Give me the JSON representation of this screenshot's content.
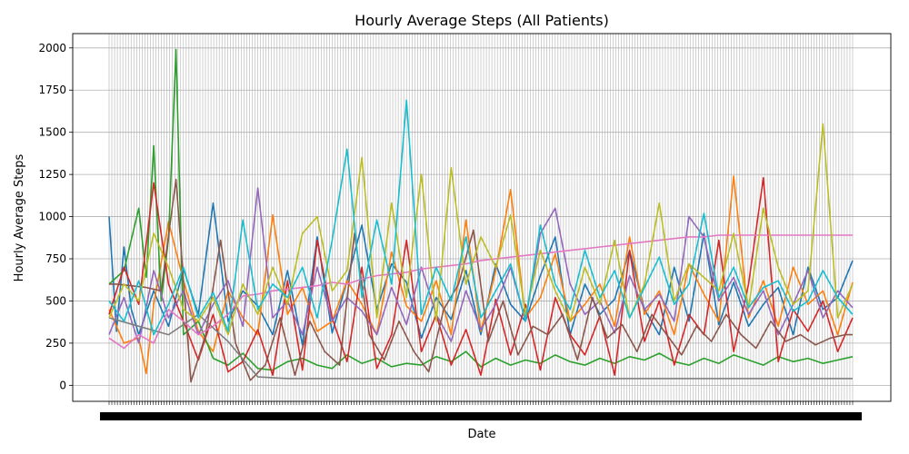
{
  "chart_data": {
    "type": "line",
    "title": "Hourly Average Steps (All Patients)",
    "xlabel": "Date",
    "ylabel": "Hourly Average Steps",
    "ylim": [
      -95,
      2085
    ],
    "xlim": [
      0,
      100
    ],
    "x_axis_note": "dense overlapping date tick labels (unreadable)",
    "y_ticks": [
      0,
      250,
      500,
      750,
      1000,
      1250,
      1500,
      1750,
      2000
    ],
    "grid": true,
    "legend": false,
    "colors": [
      "#1f77b4",
      "#ff7f0e",
      "#2ca02c",
      "#d62728",
      "#9467bd",
      "#8c564b",
      "#e377c2",
      "#7f7f7f",
      "#bcbd22",
      "#17becf"
    ],
    "series": [
      {
        "x": [
          0,
          1,
          2,
          3,
          4,
          6,
          8,
          10,
          12,
          14,
          16,
          18,
          20,
          22,
          24,
          26,
          28,
          30,
          32,
          34,
          36,
          38,
          40,
          42,
          44,
          46,
          48,
          50,
          52,
          54,
          56,
          58,
          60,
          62,
          64,
          66,
          68,
          70,
          72,
          74,
          76,
          78,
          80,
          82,
          84,
          86,
          88,
          90,
          92,
          94,
          96,
          98,
          100
        ],
        "values": [
          1000,
          320,
          820,
          450,
          300,
          560,
          350,
          690,
          420,
          1080,
          380,
          560,
          470,
          300,
          680,
          240,
          880,
          310,
          620,
          950,
          450,
          720,
          610,
          280,
          520,
          390,
          680,
          300,
          720,
          480,
          380,
          650,
          880,
          300,
          600,
          420,
          510,
          800,
          450,
          300,
          700,
          380,
          900,
          360,
          610,
          350,
          480,
          580,
          300,
          700,
          450,
          520,
          740
        ]
      },
      {
        "x": [
          0,
          2,
          4,
          5,
          6,
          8,
          10,
          12,
          14,
          16,
          18,
          20,
          22,
          24,
          26,
          28,
          30,
          32,
          34,
          36,
          38,
          40,
          42,
          44,
          46,
          48,
          50,
          52,
          54,
          56,
          58,
          60,
          62,
          64,
          66,
          68,
          70,
          72,
          74,
          76,
          78,
          80,
          82,
          84,
          86,
          88,
          90,
          92,
          94,
          96,
          98,
          100
        ],
        "values": [
          450,
          250,
          280,
          70,
          480,
          970,
          620,
          320,
          200,
          560,
          400,
          300,
          1010,
          420,
          580,
          320,
          380,
          620,
          480,
          300,
          790,
          470,
          380,
          620,
          300,
          980,
          320,
          680,
          1160,
          400,
          520,
          780,
          380,
          480,
          600,
          350,
          880,
          420,
          560,
          300,
          720,
          540,
          380,
          1240,
          400,
          620,
          350,
          700,
          480,
          560,
          300,
          610
        ]
      },
      {
        "x": [
          0,
          2,
          4,
          5,
          6,
          7,
          8,
          9,
          10,
          12,
          14,
          16,
          18,
          20,
          22,
          24,
          26,
          28,
          30,
          32,
          34,
          36,
          38,
          40,
          42,
          44,
          46,
          48,
          50,
          52,
          54,
          56,
          58,
          60,
          62,
          64,
          66,
          68,
          70,
          72,
          74,
          76,
          78,
          80,
          82,
          84,
          86,
          88,
          90,
          92,
          94,
          96,
          98,
          100
        ],
        "values": [
          600,
          680,
          1050,
          640,
          1420,
          500,
          870,
          1990,
          300,
          380,
          160,
          120,
          190,
          100,
          90,
          140,
          160,
          120,
          100,
          180,
          130,
          160,
          110,
          130,
          120,
          170,
          140,
          200,
          110,
          160,
          120,
          150,
          130,
          180,
          140,
          120,
          160,
          130,
          170,
          150,
          190,
          140,
          120,
          160,
          130,
          180,
          150,
          120,
          170,
          140,
          160,
          130,
          150,
          170
        ]
      },
      {
        "x": [
          0,
          2,
          4,
          6,
          8,
          10,
          12,
          14,
          16,
          18,
          20,
          22,
          24,
          26,
          28,
          30,
          32,
          34,
          36,
          38,
          40,
          42,
          44,
          46,
          48,
          50,
          52,
          54,
          56,
          58,
          60,
          62,
          64,
          66,
          68,
          70,
          72,
          74,
          76,
          78,
          80,
          82,
          84,
          86,
          88,
          90,
          92,
          94,
          96,
          98,
          100
        ],
        "values": [
          420,
          700,
          480,
          1200,
          600,
          380,
          150,
          420,
          80,
          140,
          330,
          60,
          620,
          90,
          860,
          400,
          140,
          700,
          100,
          300,
          860,
          200,
          420,
          120,
          330,
          60,
          510,
          180,
          480,
          90,
          520,
          300,
          180,
          410,
          60,
          800,
          260,
          500,
          120,
          420,
          300,
          860,
          200,
          600,
          1230,
          140,
          450,
          320,
          500,
          200,
          400
        ]
      },
      {
        "x": [
          0,
          2,
          4,
          6,
          8,
          10,
          12,
          14,
          16,
          18,
          20,
          22,
          24,
          26,
          28,
          30,
          32,
          34,
          36,
          38,
          40,
          42,
          44,
          46,
          48,
          50,
          52,
          54,
          56,
          58,
          60,
          62,
          64,
          66,
          68,
          70,
          72,
          74,
          76,
          78,
          80,
          82,
          84,
          86,
          88,
          90,
          92,
          94,
          96,
          98,
          100
        ],
        "values": [
          300,
          520,
          250,
          680,
          400,
          560,
          300,
          480,
          620,
          350,
          1170,
          400,
          500,
          300,
          700,
          380,
          520,
          440,
          300,
          580,
          360,
          700,
          420,
          260,
          560,
          330,
          480,
          700,
          380,
          900,
          1050,
          600,
          420,
          500,
          310,
          650,
          450,
          540,
          380,
          1000,
          880,
          500,
          640,
          420,
          560,
          300,
          480,
          680,
          400,
          560,
          460
        ]
      },
      {
        "x": [
          0,
          1,
          3,
          5,
          7,
          9,
          11,
          13,
          15,
          17,
          19,
          21,
          23,
          25,
          27,
          29,
          31,
          33,
          35,
          37,
          39,
          41,
          43,
          45,
          47,
          49,
          51,
          53,
          55,
          57,
          59,
          61,
          63,
          65,
          67,
          69,
          71,
          73,
          75,
          77,
          79,
          81,
          83,
          85,
          87,
          89,
          91,
          93,
          95,
          97,
          99,
          100
        ],
        "values": [
          600,
          600,
          590,
          580,
          560,
          1220,
          20,
          300,
          860,
          250,
          30,
          120,
          400,
          60,
          380,
          200,
          120,
          900,
          300,
          150,
          380,
          200,
          80,
          450,
          600,
          920,
          260,
          500,
          180,
          350,
          300,
          420,
          150,
          520,
          280,
          360,
          200,
          420,
          300,
          180,
          350,
          260,
          420,
          300,
          220,
          380,
          260,
          300,
          240,
          280,
          300,
          300
        ]
      },
      {
        "x": [
          0,
          2,
          4,
          6,
          8,
          10,
          12,
          14,
          16,
          18,
          20,
          22,
          24,
          26,
          28,
          30,
          32,
          34,
          36,
          38,
          40,
          42,
          44,
          46,
          48,
          50,
          52,
          54,
          56,
          58,
          60,
          62,
          64,
          66,
          68,
          70,
          72,
          74,
          76,
          78,
          80,
          82,
          84,
          86,
          88,
          90,
          92,
          94,
          96,
          98,
          100
        ],
        "values": [
          280,
          220,
          300,
          250,
          450,
          380,
          300,
          350,
          420,
          530,
          540,
          560,
          570,
          580,
          590,
          610,
          600,
          630,
          650,
          660,
          670,
          690,
          700,
          710,
          720,
          740,
          750,
          760,
          770,
          780,
          790,
          800,
          810,
          820,
          830,
          840,
          850,
          860,
          870,
          880,
          880,
          890,
          890,
          890,
          890,
          890,
          890,
          890,
          890,
          890,
          890
        ]
      },
      {
        "x": [
          0,
          4,
          8,
          12,
          16,
          20,
          24,
          28,
          32,
          36,
          40,
          44,
          48,
          52,
          56,
          60,
          64,
          68,
          72,
          76,
          80,
          84,
          88,
          92,
          96,
          100
        ],
        "values": [
          400,
          350,
          300,
          420,
          260,
          50,
          40,
          40,
          40,
          40,
          40,
          40,
          40,
          40,
          40,
          40,
          40,
          40,
          40,
          40,
          40,
          40,
          40,
          40,
          40,
          40
        ]
      },
      {
        "x": [
          0,
          2,
          4,
          6,
          8,
          10,
          12,
          14,
          16,
          18,
          20,
          22,
          24,
          26,
          28,
          30,
          32,
          34,
          36,
          38,
          40,
          42,
          44,
          46,
          48,
          50,
          52,
          54,
          56,
          58,
          60,
          62,
          64,
          66,
          68,
          70,
          72,
          74,
          76,
          78,
          80,
          82,
          84,
          86,
          88,
          90,
          92,
          94,
          96,
          98,
          100
        ],
        "values": [
          400,
          600,
          500,
          900,
          700,
          450,
          380,
          520,
          300,
          600,
          420,
          700,
          480,
          900,
          1000,
          560,
          680,
          1350,
          400,
          1080,
          520,
          1250,
          380,
          1290,
          600,
          880,
          700,
          1010,
          420,
          800,
          560,
          380,
          700,
          480,
          860,
          400,
          600,
          1080,
          500,
          720,
          640,
          560,
          900,
          460,
          1050,
          700,
          480,
          560,
          1550,
          400,
          600
        ]
      },
      {
        "x": [
          0,
          2,
          4,
          6,
          8,
          10,
          12,
          14,
          16,
          18,
          20,
          22,
          24,
          26,
          28,
          30,
          32,
          34,
          36,
          38,
          40,
          42,
          44,
          46,
          48,
          50,
          52,
          54,
          56,
          58,
          60,
          62,
          64,
          66,
          68,
          70,
          72,
          74,
          76,
          78,
          80,
          82,
          84,
          86,
          88,
          90,
          92,
          94,
          96,
          98,
          100
        ],
        "values": [
          500,
          380,
          620,
          300,
          480,
          700,
          400,
          550,
          320,
          980,
          450,
          600,
          520,
          700,
          400,
          860,
          1400,
          520,
          980,
          600,
          1690,
          420,
          700,
          500,
          880,
          400,
          560,
          720,
          380,
          950,
          600,
          450,
          800,
          520,
          680,
          400,
          580,
          760,
          480,
          600,
          1020,
          520,
          700,
          460,
          580,
          620,
          440,
          500,
          680,
          520,
          420
        ]
      }
    ]
  }
}
